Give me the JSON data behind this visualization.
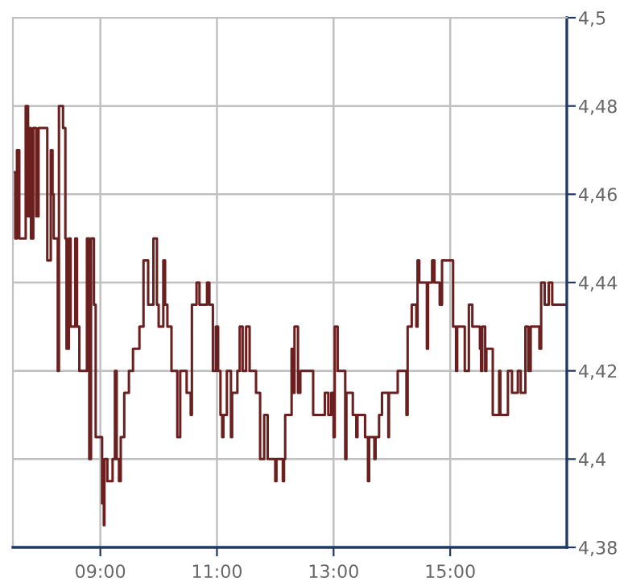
{
  "chart_data": {
    "type": "step",
    "color": "#6b1f1f",
    "x": [
      7.5,
      7.54,
      7.57,
      7.61,
      7.72,
      7.76,
      7.79,
      7.81,
      7.85,
      7.9,
      7.94,
      8.09,
      8.15,
      8.18,
      8.2,
      8.27,
      8.29,
      8.36,
      8.4,
      8.42,
      8.46,
      8.49,
      8.57,
      8.6,
      8.64,
      8.77,
      8.81,
      8.84,
      8.89,
      8.92,
      9.03,
      9.06,
      9.07,
      9.12,
      9.21,
      9.25,
      9.28,
      9.32,
      9.35,
      9.41,
      9.49,
      9.56,
      9.67,
      9.74,
      9.82,
      9.91,
      9.97,
      10.0,
      10.08,
      10.11,
      10.15,
      10.22,
      10.32,
      10.37,
      10.48,
      10.55,
      10.57,
      10.65,
      10.7,
      10.83,
      10.87,
      10.93,
      10.98,
      11.02,
      11.06,
      11.09,
      11.11,
      11.17,
      11.24,
      11.26,
      11.35,
      11.39,
      11.44,
      11.5,
      11.56,
      11.67,
      11.74,
      11.81,
      11.87,
      12.0,
      12.02,
      12.13,
      12.15,
      12.17,
      12.28,
      12.3,
      12.33,
      12.39,
      12.43,
      12.65,
      12.85,
      12.91,
      12.96,
      13.0,
      13.02,
      13.07,
      13.2,
      13.22,
      13.33,
      13.39,
      13.41,
      13.54,
      13.59,
      13.61,
      13.7,
      13.72,
      13.78,
      13.83,
      13.94,
      13.95,
      14.1,
      14.25,
      14.27,
      14.34,
      14.42,
      14.44,
      14.47,
      14.6,
      14.62,
      14.69,
      14.73,
      14.82,
      14.86,
      15.05,
      15.1,
      15.12,
      15.25,
      15.32,
      15.38,
      15.51,
      15.53,
      15.55,
      15.6,
      15.62,
      15.73,
      15.84,
      15.86,
      15.99,
      16.06,
      16.16,
      16.21,
      16.29,
      16.34,
      16.38,
      16.53,
      16.56,
      16.62,
      16.69,
      16.75,
      17.0
    ],
    "values": [
      4.465,
      4.45,
      4.47,
      4.45,
      4.48,
      4.455,
      4.475,
      4.45,
      4.475,
      4.455,
      4.475,
      4.445,
      4.47,
      4.46,
      4.45,
      4.42,
      4.48,
      4.475,
      4.45,
      4.425,
      4.45,
      4.43,
      4.45,
      4.43,
      4.42,
      4.45,
      4.4,
      4.45,
      4.435,
      4.405,
      4.39,
      4.385,
      4.4,
      4.395,
      4.4,
      4.42,
      4.4,
      4.395,
      4.405,
      4.415,
      4.42,
      4.425,
      4.43,
      4.445,
      4.435,
      4.45,
      4.435,
      4.43,
      4.445,
      4.435,
      4.43,
      4.42,
      4.405,
      4.42,
      4.415,
      4.41,
      4.435,
      4.44,
      4.435,
      4.44,
      4.435,
      4.42,
      4.43,
      4.42,
      4.41,
      4.405,
      4.41,
      4.42,
      4.405,
      4.415,
      4.42,
      4.43,
      4.42,
      4.43,
      4.42,
      4.415,
      4.4,
      4.41,
      4.4,
      4.395,
      4.4,
      4.395,
      4.4,
      4.41,
      4.425,
      4.415,
      4.43,
      4.415,
      4.42,
      4.41,
      4.415,
      4.41,
      4.415,
      4.405,
      4.43,
      4.42,
      4.4,
      4.415,
      4.41,
      4.405,
      4.41,
      4.405,
      4.395,
      4.405,
      4.4,
      4.405,
      4.41,
      4.415,
      4.405,
      4.415,
      4.42,
      4.41,
      4.43,
      4.435,
      4.43,
      4.445,
      4.44,
      4.425,
      4.44,
      4.445,
      4.44,
      4.435,
      4.445,
      4.43,
      4.42,
      4.43,
      4.42,
      4.435,
      4.43,
      4.425,
      4.42,
      4.43,
      4.42,
      4.425,
      4.41,
      4.42,
      4.41,
      4.42,
      4.415,
      4.42,
      4.415,
      4.43,
      4.42,
      4.43,
      4.425,
      4.44,
      4.435,
      4.44,
      4.435,
      4.435
    ],
    "xlim": [
      7.5,
      17
    ],
    "ylim": [
      4.38,
      4.5
    ],
    "xticks": [
      {
        "value": 9,
        "label": "09:00"
      },
      {
        "value": 11,
        "label": "11:00"
      },
      {
        "value": 13,
        "label": "13:00"
      },
      {
        "value": 15,
        "label": "15:00"
      }
    ],
    "yticks": [
      {
        "value": 4.38,
        "label": "4,38"
      },
      {
        "value": 4.4,
        "label": "4,4"
      },
      {
        "value": 4.42,
        "label": "4,42"
      },
      {
        "value": 4.44,
        "label": "4,44"
      },
      {
        "value": 4.46,
        "label": "4,46"
      },
      {
        "value": 4.48,
        "label": "4,48"
      },
      {
        "value": 4.5,
        "label": "4,5"
      }
    ],
    "grid": true
  }
}
